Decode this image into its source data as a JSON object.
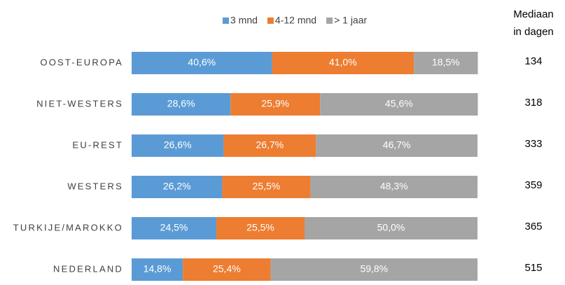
{
  "chart_data": {
    "type": "stacked-bar-horizontal",
    "categories": [
      "OOST-EUROPA",
      "NIET-WESTERS",
      "EU-REST",
      "WESTERS",
      "TURKIJE/MAROKKO",
      "NEDERLAND"
    ],
    "xlim": [
      0,
      100
    ],
    "series": [
      {
        "name": "3 mnd",
        "color": "#5b9bd5",
        "values": [
          40.6,
          28.6,
          26.6,
          26.2,
          24.5,
          14.8
        ],
        "value_labels": [
          "40,6%",
          "28,6%",
          "26,6%",
          "26,2%",
          "24,5%",
          "14,8%"
        ]
      },
      {
        "name": "4-12 mnd",
        "color": "#ed7d31",
        "values": [
          41.0,
          25.9,
          26.7,
          25.5,
          25.5,
          25.4
        ],
        "value_labels": [
          "41,0%",
          "25,9%",
          "26,7%",
          "25,5%",
          "25,5%",
          "25,4%"
        ]
      },
      {
        "name": "> 1 jaar",
        "color": "#a5a5a5",
        "values": [
          18.5,
          45.6,
          46.7,
          48.3,
          50.0,
          59.8
        ],
        "value_labels": [
          "18,5%",
          "45,6%",
          "46,7%",
          "48,3%",
          "50,0%",
          "59,8%"
        ]
      }
    ],
    "median_header": [
      "Mediaan",
      "in dagen"
    ],
    "median_values": [
      134,
      318,
      333,
      359,
      365,
      515
    ]
  }
}
